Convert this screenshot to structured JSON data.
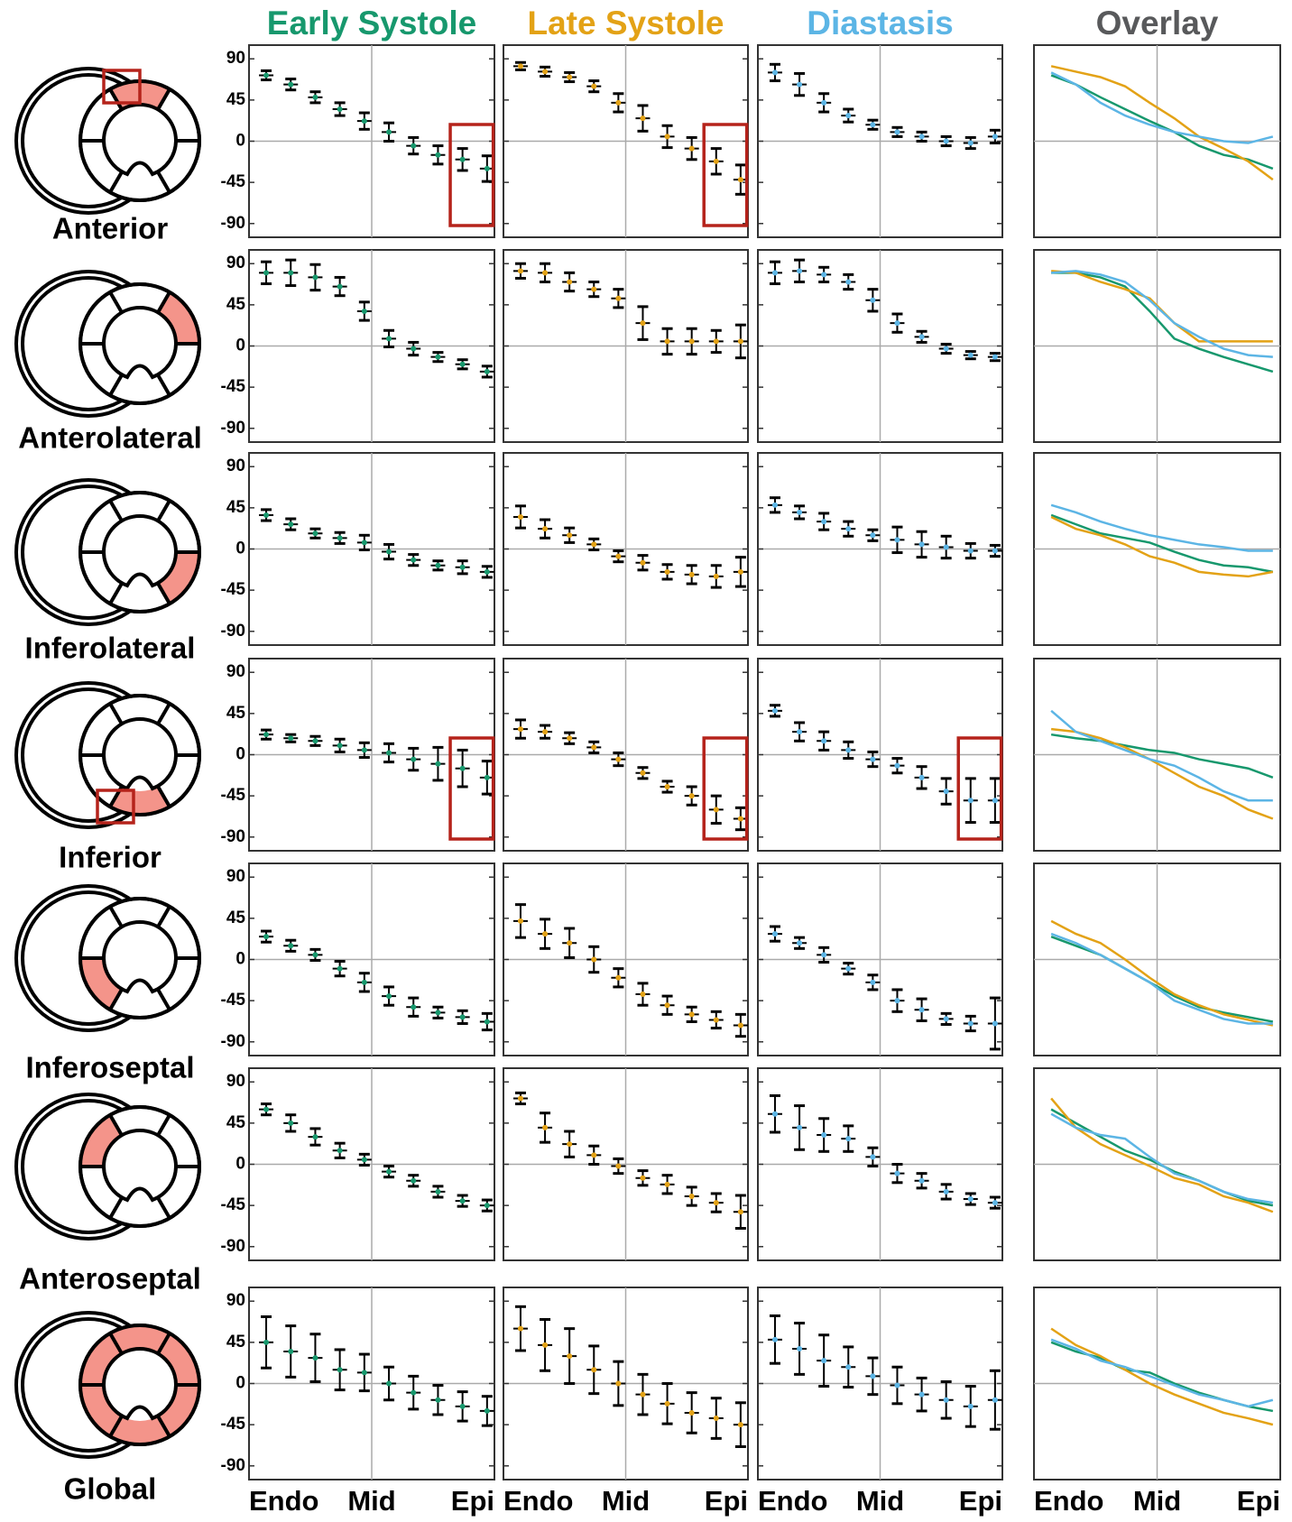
{
  "chart_data": {
    "type": "errorbar-grid",
    "columns": [
      {
        "name": "Early Systole",
        "color": "#17986d"
      },
      {
        "name": "Late Systole",
        "color": "#e3a216"
      },
      {
        "name": "Diastasis",
        "color": "#5cb5e5"
      },
      {
        "name": "Overlay",
        "color": "#58595b"
      }
    ],
    "x": [
      0.07,
      0.17,
      0.27,
      0.37,
      0.47,
      0.57,
      0.67,
      0.77,
      0.87,
      0.97
    ],
    "xlim": [
      0,
      1
    ],
    "xticks": [
      {
        "value": 0,
        "label": "Endo"
      },
      {
        "value": 0.5,
        "label": "Mid"
      },
      {
        "value": 1,
        "label": "Epi"
      }
    ],
    "ylim": [
      -105,
      105
    ],
    "yticks": [
      90,
      45,
      0,
      -45,
      -90
    ],
    "rows": [
      {
        "label": "Anterior",
        "series": [
          {
            "values": [
              72,
              62,
              48,
              35,
              22,
              10,
              -5,
              -15,
              -20,
              -30
            ],
            "errors": [
              5,
              6,
              6,
              7,
              9,
              10,
              9,
              10,
              12,
              14
            ]
          },
          {
            "values": [
              82,
              76,
              70,
              60,
              42,
              25,
              5,
              -8,
              -22,
              -42
            ],
            "errors": [
              4,
              5,
              5,
              6,
              10,
              14,
              12,
              12,
              14,
              16
            ]
          },
          {
            "values": [
              75,
              62,
              42,
              28,
              18,
              10,
              5,
              0,
              -2,
              5
            ],
            "errors": [
              9,
              12,
              10,
              7,
              5,
              5,
              5,
              5,
              6,
              7
            ]
          }
        ]
      },
      {
        "label": "Anterolateral",
        "series": [
          {
            "values": [
              80,
              80,
              75,
              65,
              38,
              8,
              -3,
              -12,
              -20,
              -28
            ],
            "errors": [
              12,
              14,
              14,
              10,
              10,
              9,
              7,
              5,
              5,
              6
            ]
          },
          {
            "values": [
              82,
              80,
              70,
              62,
              52,
              25,
              5,
              5,
              5,
              5
            ],
            "errors": [
              8,
              10,
              10,
              8,
              10,
              18,
              14,
              14,
              12,
              18
            ]
          },
          {
            "values": [
              80,
              82,
              78,
              70,
              50,
              25,
              10,
              -3,
              -10,
              -12
            ],
            "errors": [
              12,
              12,
              8,
              8,
              12,
              10,
              6,
              5,
              4,
              4
            ]
          }
        ]
      },
      {
        "label": "Inferolateral",
        "series": [
          {
            "values": [
              37,
              27,
              17,
              12,
              7,
              -3,
              -12,
              -18,
              -20,
              -25
            ],
            "errors": [
              6,
              6,
              5,
              6,
              8,
              8,
              6,
              5,
              7,
              6
            ]
          },
          {
            "values": [
              35,
              22,
              15,
              5,
              -8,
              -15,
              -25,
              -28,
              -30,
              -25
            ],
            "errors": [
              12,
              10,
              8,
              6,
              6,
              8,
              8,
              10,
              12,
              16
            ]
          },
          {
            "values": [
              48,
              40,
              30,
              22,
              15,
              10,
              5,
              2,
              -2,
              -2
            ],
            "errors": [
              8,
              7,
              9,
              8,
              6,
              14,
              14,
              12,
              8,
              6
            ]
          }
        ]
      },
      {
        "label": "Inferior",
        "series": [
          {
            "values": [
              22,
              18,
              15,
              10,
              5,
              2,
              -5,
              -10,
              -15,
              -25
            ],
            "errors": [
              5,
              4,
              5,
              7,
              8,
              10,
              12,
              18,
              20,
              18
            ]
          },
          {
            "values": [
              28,
              25,
              18,
              8,
              -5,
              -20,
              -35,
              -45,
              -60,
              -70
            ],
            "errors": [
              10,
              7,
              6,
              6,
              7,
              6,
              6,
              10,
              15,
              12
            ]
          },
          {
            "values": [
              48,
              25,
              15,
              5,
              -5,
              -12,
              -25,
              -40,
              -50,
              -50
            ],
            "errors": [
              6,
              10,
              10,
              9,
              8,
              8,
              12,
              14,
              24,
              24
            ]
          }
        ]
      },
      {
        "label": "Inferoseptal",
        "series": [
          {
            "values": [
              25,
              15,
              5,
              -10,
              -25,
              -40,
              -52,
              -58,
              -63,
              -68
            ],
            "errors": [
              6,
              6,
              6,
              8,
              10,
              10,
              10,
              6,
              7,
              9
            ]
          },
          {
            "values": [
              42,
              28,
              18,
              0,
              -20,
              -38,
              -50,
              -60,
              -66,
              -72
            ],
            "errors": [
              18,
              16,
              16,
              14,
              10,
              12,
              10,
              8,
              9,
              12
            ]
          },
          {
            "values": [
              28,
              18,
              5,
              -10,
              -25,
              -45,
              -55,
              -65,
              -70,
              -70
            ],
            "errors": [
              8,
              6,
              8,
              6,
              8,
              12,
              12,
              6,
              8,
              28
            ]
          }
        ]
      },
      {
        "label": "Anteroseptal",
        "series": [
          {
            "values": [
              60,
              45,
              30,
              15,
              5,
              -8,
              -18,
              -30,
              -40,
              -45
            ],
            "errors": [
              6,
              9,
              9,
              8,
              6,
              6,
              6,
              6,
              6,
              6
            ]
          },
          {
            "values": [
              72,
              40,
              22,
              10,
              -2,
              -15,
              -22,
              -35,
              -42,
              -52
            ],
            "errors": [
              6,
              16,
              14,
              10,
              8,
              8,
              10,
              10,
              10,
              18
            ]
          },
          {
            "values": [
              55,
              40,
              32,
              28,
              8,
              -10,
              -18,
              -30,
              -38,
              -42
            ],
            "errors": [
              20,
              24,
              18,
              14,
              10,
              10,
              8,
              8,
              6,
              6
            ]
          }
        ]
      },
      {
        "label": "Global",
        "series": [
          {
            "values": [
              45,
              35,
              28,
              15,
              12,
              0,
              -10,
              -18,
              -25,
              -30
            ],
            "errors": [
              28,
              28,
              26,
              22,
              20,
              18,
              18,
              16,
              16,
              16
            ]
          },
          {
            "values": [
              60,
              42,
              30,
              15,
              0,
              -12,
              -22,
              -32,
              -38,
              -45
            ],
            "errors": [
              24,
              28,
              30,
              26,
              24,
              22,
              22,
              22,
              22,
              24
            ]
          },
          {
            "values": [
              48,
              38,
              25,
              18,
              8,
              -2,
              -12,
              -18,
              -25,
              -18
            ],
            "errors": [
              26,
              28,
              28,
              22,
              20,
              20,
              18,
              20,
              22,
              32
            ]
          }
        ]
      }
    ]
  }
}
